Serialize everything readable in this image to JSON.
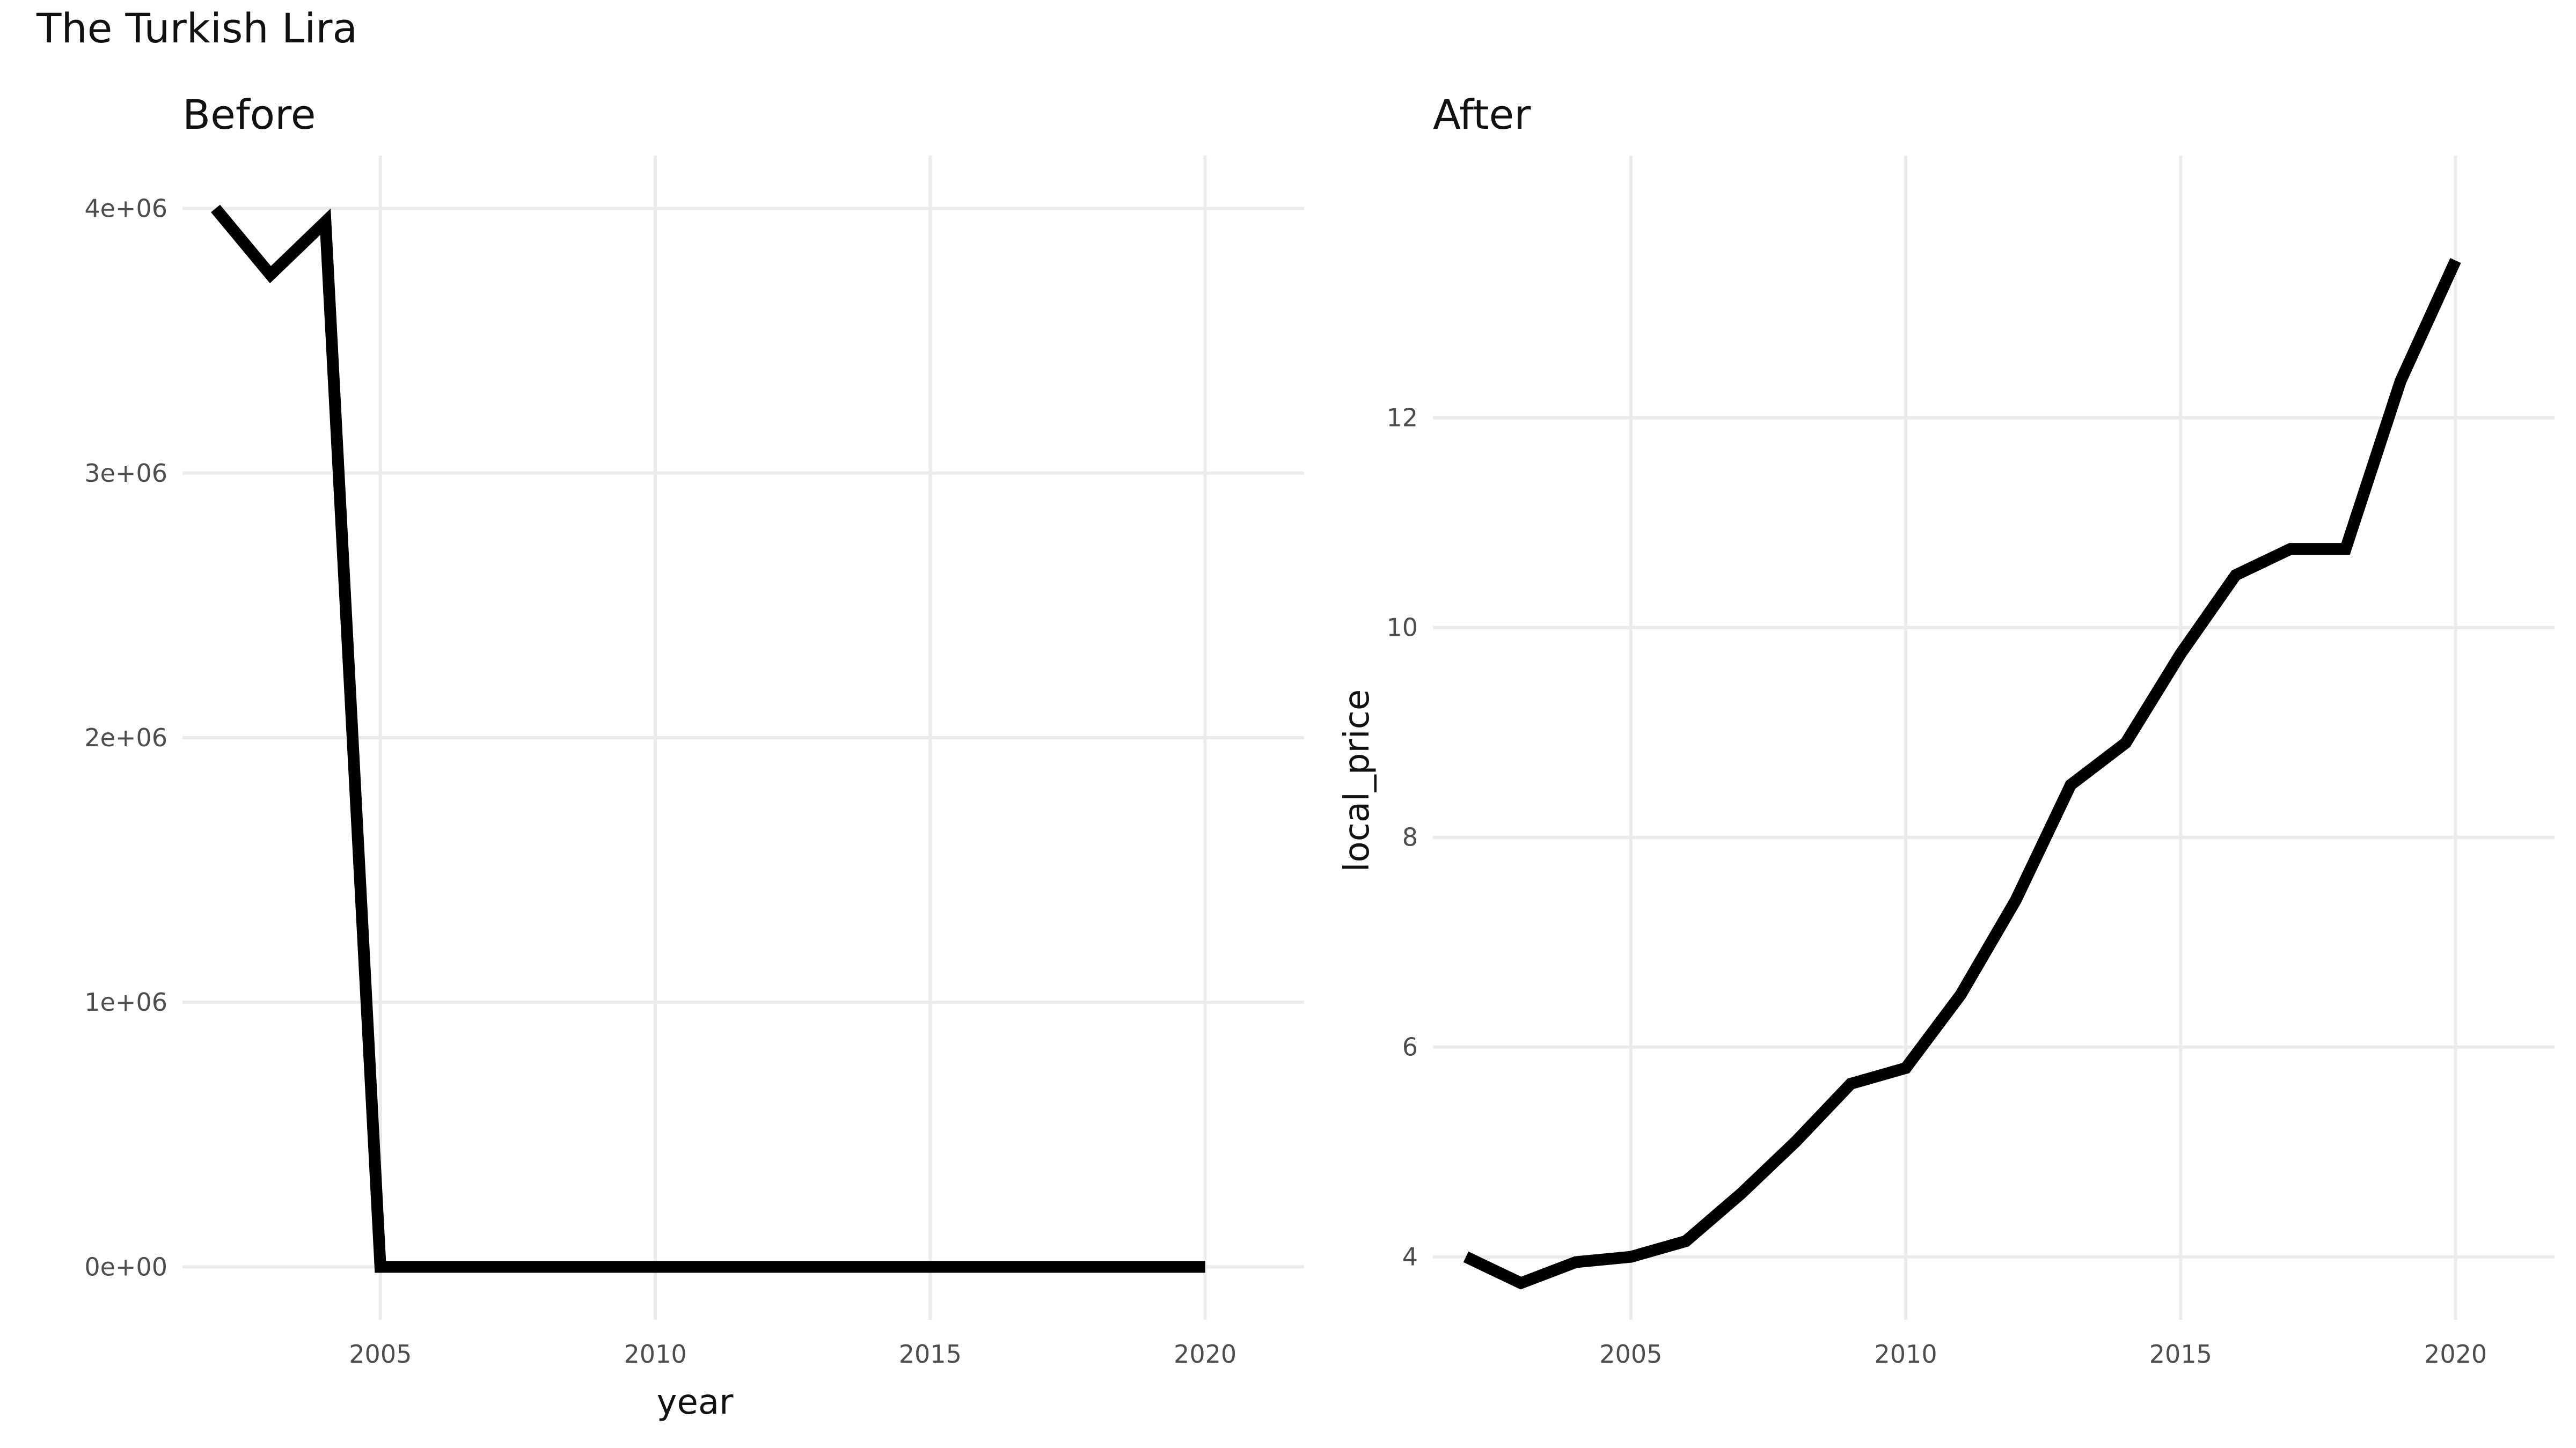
{
  "figure_title": "The Turkish Lira",
  "chart_data": [
    {
      "type": "line",
      "title": "Before",
      "xlabel": "year",
      "ylabel": "",
      "xlim": [
        2001.4,
        2021.8
      ],
      "ylim": [
        -200000,
        4200000
      ],
      "x_ticks": [
        2005,
        2010,
        2015,
        2020
      ],
      "x_tick_labels": [
        "2005",
        "2010",
        "2015",
        "2020"
      ],
      "y_ticks": [
        0,
        1000000,
        2000000,
        3000000,
        4000000
      ],
      "y_tick_labels": [
        "0e+00",
        "1e+06",
        "2e+06",
        "3e+06",
        "4e+06"
      ],
      "grid": true,
      "series": [
        {
          "color": "#000000",
          "x": [
            2002,
            2003,
            2004,
            2005,
            2006,
            2007,
            2008,
            2009,
            2010,
            2011,
            2012,
            2013,
            2014,
            2015,
            2016,
            2017,
            2018,
            2019,
            2020
          ],
          "y": [
            4000000,
            3750000,
            3950000,
            4,
            4.15,
            4.6,
            5.1,
            5.65,
            5.8,
            6.5,
            7.4,
            8.5,
            8.9,
            9.75,
            10.5,
            10.75,
            10.75,
            12.35,
            13.5
          ]
        }
      ]
    },
    {
      "type": "line",
      "title": "After",
      "xlabel": "",
      "ylabel": "local_price",
      "xlim": [
        2001.4,
        2021.8
      ],
      "ylim": [
        3.4,
        14.5
      ],
      "x_ticks": [
        2005,
        2010,
        2015,
        2020
      ],
      "x_tick_labels": [
        "2005",
        "2010",
        "2015",
        "2020"
      ],
      "y_ticks": [
        4,
        6,
        8,
        10,
        12
      ],
      "y_tick_labels": [
        "4",
        "6",
        "8",
        "10",
        "12"
      ],
      "grid": true,
      "series": [
        {
          "color": "#000000",
          "x": [
            2002,
            2003,
            2004,
            2005,
            2006,
            2007,
            2008,
            2009,
            2010,
            2011,
            2012,
            2013,
            2014,
            2015,
            2016,
            2017,
            2018,
            2019,
            2020
          ],
          "y": [
            4.0,
            3.75,
            3.95,
            4.0,
            4.15,
            4.6,
            5.1,
            5.65,
            5.8,
            6.5,
            7.4,
            8.5,
            8.9,
            9.75,
            10.5,
            10.75,
            10.75,
            12.35,
            13.5
          ]
        }
      ]
    }
  ]
}
